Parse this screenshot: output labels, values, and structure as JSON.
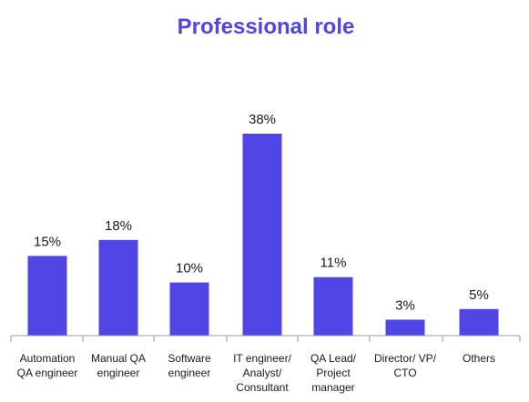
{
  "chart_data": {
    "type": "bar",
    "title": "Professional role",
    "xlabel": "",
    "ylabel": "",
    "value_suffix": "%",
    "categories": [
      [
        "Automation",
        "QA engineer"
      ],
      [
        "Manual QA",
        "engineer"
      ],
      [
        "Software",
        "engineer"
      ],
      [
        "IT engineer/",
        "Analyst/",
        "Consultant"
      ],
      [
        "QA Lead/",
        "Project",
        "manager"
      ],
      [
        "Director/ VP/",
        "CTO"
      ],
      [
        "Others"
      ]
    ],
    "values": [
      15,
      18,
      10,
      38,
      11,
      3,
      5
    ],
    "ylim": [
      0,
      38
    ],
    "grid": false,
    "legend": "none",
    "colors": {
      "bar": "#5046E5",
      "title": "#5046E5",
      "label": "#1a1a1a",
      "axis": "#9a9a9a"
    }
  }
}
